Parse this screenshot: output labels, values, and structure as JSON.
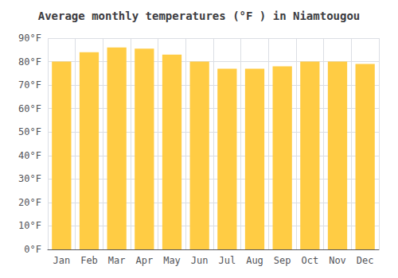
{
  "chart_data": {
    "type": "bar",
    "title": "Average monthly temperatures (°F ) in Niamtougou",
    "categories": [
      "Jan",
      "Feb",
      "Mar",
      "Apr",
      "May",
      "Jun",
      "Jul",
      "Aug",
      "Sep",
      "Oct",
      "Nov",
      "Dec"
    ],
    "values": [
      80,
      84,
      86,
      85.5,
      83,
      80,
      77,
      77,
      78,
      80,
      80,
      79
    ],
    "color": "#FFCC44",
    "ylim": [
      0,
      90
    ],
    "yticks": [
      {
        "value": 0,
        "label": "0°F"
      },
      {
        "value": 10,
        "label": "10°F"
      },
      {
        "value": 20,
        "label": "20°F"
      },
      {
        "value": 30,
        "label": "30°F"
      },
      {
        "value": 40,
        "label": "40°F"
      },
      {
        "value": 50,
        "label": "50°F"
      },
      {
        "value": 60,
        "label": "60°F"
      },
      {
        "value": 70,
        "label": "70°F"
      },
      {
        "value": 80,
        "label": "80°F"
      },
      {
        "value": 90,
        "label": "90°F"
      }
    ],
    "grid": true
  }
}
